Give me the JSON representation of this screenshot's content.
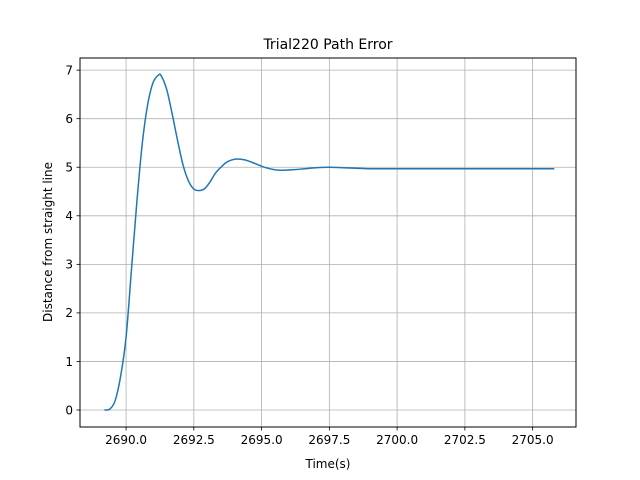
{
  "chart_data": {
    "type": "line",
    "title": "Trial220 Path Error",
    "xlabel": "Time(s)",
    "ylabel": "Distance from straight line",
    "xlim": [
      2688.3,
      2706.6
    ],
    "ylim": [
      -0.35,
      7.25
    ],
    "xticks": [
      2690.0,
      2692.5,
      2695.0,
      2697.5,
      2700.0,
      2702.5,
      2705.0
    ],
    "xtick_labels": [
      "2690.0",
      "2692.5",
      "2695.0",
      "2697.5",
      "2700.0",
      "2702.5",
      "2705.0"
    ],
    "yticks": [
      0,
      1,
      2,
      3,
      4,
      5,
      6,
      7
    ],
    "ytick_labels": [
      "0",
      "1",
      "2",
      "3",
      "4",
      "5",
      "6",
      "7"
    ],
    "grid": true,
    "line_color": "#1f77b4",
    "series": [
      {
        "x": [
          2689.2,
          2689.4,
          2689.6,
          2689.8,
          2690.0,
          2690.2,
          2690.4,
          2690.6,
          2690.8,
          2691.0,
          2691.2,
          2691.3,
          2691.5,
          2691.7,
          2691.9,
          2692.1,
          2692.3,
          2692.5,
          2692.7,
          2692.9,
          2693.1,
          2693.3,
          2693.5,
          2693.7,
          2693.9,
          2694.1,
          2694.4,
          2694.7,
          2695.0,
          2695.3,
          2695.6,
          2695.9,
          2696.2,
          2696.6,
          2697.0,
          2697.5,
          2698.0,
          2698.5,
          2699.0,
          2700.0,
          2701.0,
          2702.0,
          2703.0,
          2704.0,
          2705.0,
          2705.8
        ],
        "y": [
          0.0,
          0.02,
          0.2,
          0.7,
          1.5,
          2.9,
          4.3,
          5.5,
          6.3,
          6.75,
          6.9,
          6.88,
          6.6,
          6.1,
          5.55,
          5.05,
          4.72,
          4.55,
          4.52,
          4.56,
          4.7,
          4.88,
          5.0,
          5.1,
          5.15,
          5.17,
          5.15,
          5.09,
          5.02,
          4.97,
          4.94,
          4.94,
          4.95,
          4.97,
          4.99,
          5.0,
          4.99,
          4.98,
          4.97,
          4.97,
          4.97,
          4.97,
          4.97,
          4.97,
          4.97,
          4.97
        ]
      }
    ]
  }
}
